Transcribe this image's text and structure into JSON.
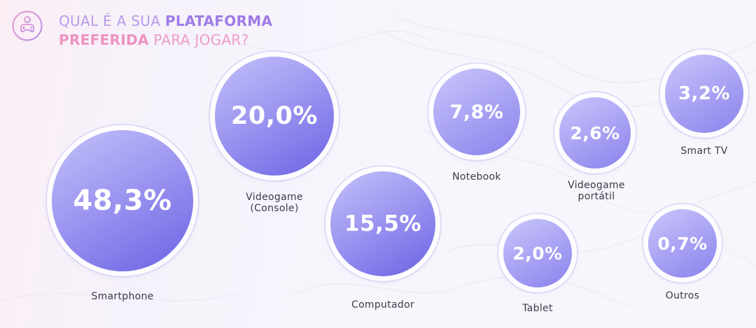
{
  "header": {
    "title_part1": "QUAL É A SUA ",
    "title_part2": "PLATAFORMA",
    "title_part3": "PREFERIDA",
    "title_part4": " PARA JOGAR?",
    "logo_icon": "gamepad-icon"
  },
  "colors": {
    "bubble_dark": "#6b62e3",
    "bubble_light": "#c3c1f9",
    "title_purple": "#9f7be6",
    "title_pink": "#ec93c1"
  },
  "chart_data": {
    "type": "bubble",
    "title": "QUAL É A SUA PLATAFORMA PREFERIDA PARA JOGAR?",
    "categories": [
      "Smartphone",
      "Videogame (Console)",
      "Computador",
      "Notebook",
      "Videogame portátil",
      "Tablet",
      "Smart TV",
      "Outros"
    ],
    "values": [
      48.3,
      20.0,
      15.5,
      7.8,
      2.6,
      2.0,
      3.2,
      0.7
    ],
    "value_labels": [
      "48,3%",
      "20,0%",
      "15,5%",
      "7,8%",
      "2,6%",
      "2,0%",
      "3,2%",
      "0,7%"
    ],
    "label_lines": [
      [
        "Smartphone"
      ],
      [
        "Videogame",
        "(Console)"
      ],
      [
        "Computador"
      ],
      [
        "Notebook"
      ],
      [
        "Videogame",
        "portátil"
      ],
      [
        "Tablet"
      ],
      [
        "Smart TV"
      ],
      [
        "Outros"
      ]
    ],
    "unit": "%"
  }
}
